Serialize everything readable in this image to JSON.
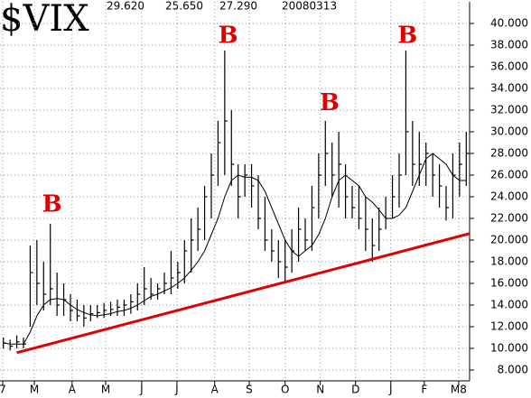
{
  "chart_data": {
    "type": "ohlc",
    "title": "$VIX",
    "header_values": [
      "29.620",
      "25.650",
      "27.290",
      "20080313"
    ],
    "x": [
      2,
      6,
      10,
      14,
      18,
      22,
      26,
      30,
      34,
      38,
      42,
      46,
      50,
      54,
      58,
      62,
      66,
      70,
      74,
      78,
      82,
      86,
      90,
      94,
      98,
      102,
      106,
      110,
      114,
      118,
      122,
      126,
      130,
      134,
      138,
      142,
      146,
      150,
      154,
      158,
      162,
      166,
      170,
      174,
      178,
      182,
      186,
      190,
      194,
      198,
      202,
      206,
      210,
      214,
      218,
      222,
      226,
      230,
      234,
      238,
      242,
      246,
      250,
      254,
      258,
      262,
      266,
      270,
      274,
      278
    ],
    "high": [
      11,
      10.8,
      11.2,
      11,
      19.5,
      20,
      18,
      21.5,
      17,
      16,
      15,
      14.5,
      14,
      14,
      14,
      14.2,
      14.3,
      14.5,
      14.5,
      15,
      16,
      17.5,
      16.5,
      16,
      17,
      19,
      18,
      20,
      22,
      23,
      25,
      28,
      31,
      37.5,
      32,
      27,
      27,
      27,
      26,
      24,
      21,
      20,
      20,
      21,
      23,
      22,
      25,
      28,
      31,
      29,
      30,
      27,
      25,
      25,
      24,
      22,
      23,
      24,
      26,
      28,
      37.5,
      31,
      30,
      29,
      28,
      27,
      25,
      28,
      29,
      30
    ],
    "low": [
      10,
      9.8,
      10,
      10,
      12,
      14,
      13.5,
      14,
      13,
      13,
      12.5,
      12.5,
      12,
      12.5,
      12.8,
      12.8,
      13,
      13,
      13,
      13.2,
      13.5,
      14,
      14.5,
      14.5,
      15,
      15,
      15.5,
      16,
      17,
      19,
      20,
      22,
      25,
      26,
      25,
      22,
      24,
      23,
      21,
      19,
      18,
      16.5,
      16,
      17,
      18,
      19,
      19,
      22,
      25,
      24,
      23,
      22,
      22,
      21,
      19,
      18,
      19,
      21,
      22,
      23,
      26,
      25,
      25,
      25,
      24,
      23,
      21.8,
      22,
      24,
      25
    ],
    "close": [
      10.5,
      10.2,
      10.6,
      10.4,
      17,
      16,
      15,
      15.5,
      14,
      14.5,
      13.5,
      13,
      12.8,
      13.2,
      13.3,
      13.5,
      13.6,
      13.8,
      14,
      14.3,
      15,
      15.5,
      15,
      15.5,
      16,
      16.5,
      17,
      19,
      20,
      21,
      24,
      26,
      29,
      31,
      27,
      24,
      26,
      25,
      22,
      20,
      19,
      18,
      17.5,
      19,
      21,
      20,
      23,
      26,
      28,
      26,
      27,
      24,
      23,
      22,
      21,
      19.5,
      21,
      22,
      24,
      26,
      30,
      27,
      27,
      28,
      26,
      25,
      23,
      26,
      27,
      28
    ],
    "moving_average": [
      10.5,
      10.4,
      10.4,
      10.4,
      11.5,
      13,
      14,
      14.5,
      14.6,
      14.5,
      14,
      13.6,
      13.3,
      13.1,
      13,
      13.1,
      13.2,
      13.4,
      13.5,
      13.7,
      14,
      14.4,
      14.8,
      15,
      15.3,
      15.6,
      16,
      16.5,
      17.2,
      18,
      19,
      20.5,
      22,
      24,
      25.5,
      26,
      25.8,
      25.8,
      25.5,
      24.5,
      23,
      21.5,
      20,
      19,
      18.5,
      19,
      19.5,
      20.5,
      22,
      24,
      25.5,
      26,
      25.5,
      25,
      24,
      23.5,
      22.8,
      22,
      22,
      22.3,
      23,
      24.5,
      26,
      27.5,
      28,
      27.5,
      27,
      26,
      25.5,
      25.5
    ],
    "bar_color": "#000000",
    "ma_color": "#000000",
    "trendline": {
      "x": [
        10,
        280
      ],
      "y": [
        9.6,
        20.6
      ],
      "color": "#e00000"
    },
    "annotations": [
      {
        "text": "B",
        "x": 31,
        "y": 23.2
      },
      {
        "text": "B",
        "x": 136,
        "y": 38.8
      },
      {
        "text": "B",
        "x": 196.5,
        "y": 32.6
      },
      {
        "text": "B",
        "x": 243,
        "y": 38.8
      }
    ],
    "xlim": [
      0,
      280
    ],
    "xticks": [
      {
        "value": 1.6,
        "label": "7"
      },
      {
        "value": 20.5,
        "label": "M"
      },
      {
        "value": 43,
        "label": "A"
      },
      {
        "value": 63,
        "label": "M"
      },
      {
        "value": 84.5,
        "label": "J"
      },
      {
        "value": 105.5,
        "label": "J"
      },
      {
        "value": 128,
        "label": "A"
      },
      {
        "value": 148.6,
        "label": "S"
      },
      {
        "value": 170,
        "label": "O"
      },
      {
        "value": 191,
        "label": "N"
      },
      {
        "value": 212,
        "label": "D"
      },
      {
        "value": 233,
        "label": "J"
      },
      {
        "value": 253,
        "label": "F"
      },
      {
        "value": 273.5,
        "label": "M8"
      }
    ],
    "ylim": [
      7,
      42
    ],
    "yticks": [
      {
        "value": 8,
        "label": "8.000"
      },
      {
        "value": 10,
        "label": "10.000"
      },
      {
        "value": 12,
        "label": "12.000"
      },
      {
        "value": 14,
        "label": "14.000"
      },
      {
        "value": 16,
        "label": "16.000"
      },
      {
        "value": 18,
        "label": "18.000"
      },
      {
        "value": 20,
        "label": "20.000"
      },
      {
        "value": 22,
        "label": "22.000"
      },
      {
        "value": 24,
        "label": "24.000"
      },
      {
        "value": 26,
        "label": "26.000"
      },
      {
        "value": 28,
        "label": "28.000"
      },
      {
        "value": 30,
        "label": "30.000"
      },
      {
        "value": 32,
        "label": "32.000"
      },
      {
        "value": 34,
        "label": "34.000"
      },
      {
        "value": 36,
        "label": "36.000"
      },
      {
        "value": 38,
        "label": "38.000"
      },
      {
        "value": 40,
        "label": "40.000"
      }
    ],
    "grid": true
  }
}
